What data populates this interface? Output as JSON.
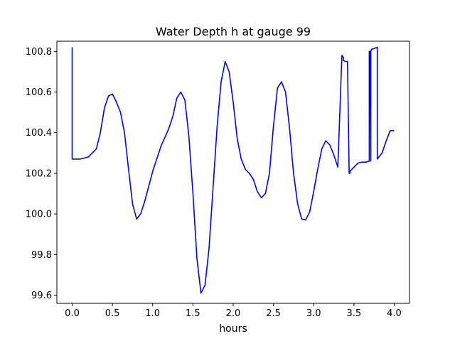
{
  "chart_data": {
    "type": "line",
    "title": "Water Depth h at gauge 99",
    "xlabel": "hours",
    "ylabel": "",
    "xlim": [
      -0.19,
      4.19
    ],
    "ylim": [
      99.56,
      100.85
    ],
    "x_ticks": [
      0.0,
      0.5,
      1.0,
      1.5,
      2.0,
      2.5,
      3.0,
      3.5,
      4.0
    ],
    "x_tick_labels": [
      "0.0",
      "0.5",
      "1.0",
      "1.5",
      "2.0",
      "2.5",
      "3.0",
      "3.5",
      "4.0"
    ],
    "y_ticks": [
      99.6,
      99.8,
      100.0,
      100.2,
      100.4,
      100.6,
      100.8
    ],
    "y_tick_labels": [
      "99.6",
      "99.8",
      "100.0",
      "100.2",
      "100.4",
      "100.6",
      "100.8"
    ],
    "grid": false,
    "series": [
      {
        "color": "#0000ff",
        "x": [
          0.0,
          0.0,
          0.0,
          0.1,
          0.2,
          0.3,
          0.35,
          0.4,
          0.45,
          0.5,
          0.55,
          0.6,
          0.65,
          0.7,
          0.75,
          0.8,
          0.85,
          0.9,
          1.0,
          1.1,
          1.2,
          1.25,
          1.3,
          1.35,
          1.4,
          1.45,
          1.5,
          1.55,
          1.6,
          1.65,
          1.7,
          1.75,
          1.8,
          1.85,
          1.9,
          1.95,
          2.0,
          2.05,
          2.1,
          2.15,
          2.2,
          2.25,
          2.3,
          2.35,
          2.4,
          2.45,
          2.5,
          2.55,
          2.6,
          2.65,
          2.7,
          2.75,
          2.8,
          2.85,
          2.9,
          2.95,
          3.0,
          3.05,
          3.1,
          3.15,
          3.2,
          3.25,
          3.3,
          3.35,
          3.37,
          3.37,
          3.4,
          3.42,
          3.44,
          3.45,
          3.45,
          3.5,
          3.55,
          3.6,
          3.65,
          3.69,
          3.69,
          3.7,
          3.71,
          3.71,
          3.72,
          3.79,
          3.79,
          3.85,
          3.9,
          3.95,
          4.0
        ],
        "y": [
          100.82,
          100.27,
          100.27,
          100.27,
          100.28,
          100.32,
          100.4,
          100.52,
          100.58,
          100.59,
          100.55,
          100.5,
          100.4,
          100.22,
          100.05,
          99.975,
          100.0,
          100.06,
          100.21,
          100.33,
          100.42,
          100.48,
          100.57,
          100.6,
          100.56,
          100.38,
          100.1,
          99.78,
          99.61,
          99.65,
          99.83,
          100.13,
          100.43,
          100.65,
          100.75,
          100.7,
          100.55,
          100.37,
          100.27,
          100.22,
          100.2,
          100.17,
          100.11,
          100.08,
          100.1,
          100.2,
          100.43,
          100.62,
          100.65,
          100.6,
          100.42,
          100.2,
          100.05,
          99.975,
          99.97,
          100.01,
          100.11,
          100.22,
          100.32,
          100.36,
          100.34,
          100.29,
          100.23,
          100.78,
          100.77,
          100.755,
          100.75,
          100.75,
          100.2,
          100.2,
          100.21,
          100.23,
          100.25,
          100.255,
          100.255,
          100.26,
          100.8,
          100.8,
          100.26,
          100.8,
          100.81,
          100.82,
          100.27,
          100.3,
          100.36,
          100.41,
          100.41
        ]
      }
    ]
  }
}
